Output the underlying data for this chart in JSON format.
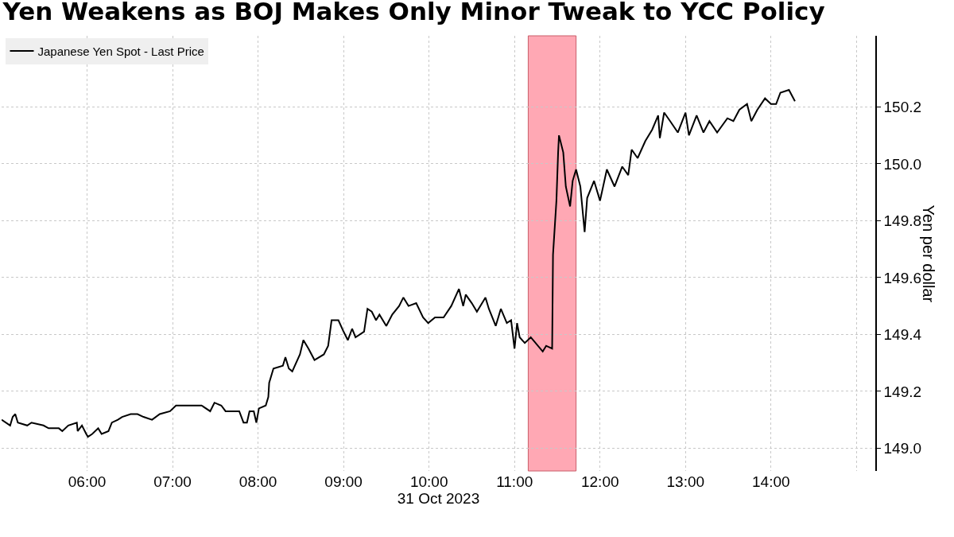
{
  "chart_data": {
    "type": "line",
    "title": "Yen Weakens as BOJ Makes Only Minor Tweak to YCC Policy",
    "xlabel": "31 Oct 2023",
    "ylabel": "Yen per dollar",
    "xlim": [
      5.0,
      15.22
    ],
    "xticks": [
      {
        "value": 6,
        "label": "06:00"
      },
      {
        "value": 7,
        "label": "07:00"
      },
      {
        "value": 8,
        "label": "08:00"
      },
      {
        "value": 9,
        "label": "09:00"
      },
      {
        "value": 10,
        "label": "10:00"
      },
      {
        "value": 11,
        "label": "11:00"
      },
      {
        "value": 12,
        "label": "12:00"
      },
      {
        "value": 13,
        "label": "13:00"
      },
      {
        "value": 14,
        "label": "14:00"
      },
      {
        "value": 15,
        "label": null
      }
    ],
    "ylim": [
      148.92,
      150.45
    ],
    "yticks": [
      {
        "value": 149,
        "label": "149.0"
      },
      {
        "value": 149.2,
        "label": "149.2"
      },
      {
        "value": 149.4,
        "label": "149.4"
      },
      {
        "value": 149.6,
        "label": "149.6"
      },
      {
        "value": 149.8,
        "label": "149.8"
      },
      {
        "value": 150,
        "label": "150.0"
      },
      {
        "value": 150.2,
        "label": "150.2"
      }
    ],
    "grid": true,
    "legend": "top left",
    "bands": [
      {
        "axis": "x",
        "from": 11.16,
        "to": 11.72,
        "color": "#ff9aa8"
      }
    ],
    "x": [
      5.0,
      5.1,
      5.13,
      5.16,
      5.19,
      5.3,
      5.35,
      5.49,
      5.55,
      5.67,
      5.71,
      5.78,
      5.88,
      5.89,
      5.94,
      5.99,
      6.01,
      6.06,
      6.13,
      6.17,
      6.25,
      6.29,
      6.36,
      6.41,
      6.51,
      6.59,
      6.66,
      6.76,
      6.85,
      6.97,
      7.04,
      7.34,
      7.44,
      7.49,
      7.57,
      7.62,
      7.78,
      7.83,
      7.87,
      7.9,
      7.95,
      7.98,
      8.01,
      8.09,
      8.12,
      8.13,
      8.18,
      8.29,
      8.32,
      8.36,
      8.4,
      8.49,
      8.53,
      8.59,
      8.66,
      8.77,
      8.82,
      8.86,
      8.94,
      9.0,
      9.05,
      9.1,
      9.14,
      9.24,
      9.28,
      9.33,
      9.38,
      9.42,
      9.5,
      9.57,
      9.65,
      9.7,
      9.76,
      9.85,
      9.93,
      9.99,
      10.07,
      10.17,
      10.26,
      10.35,
      10.4,
      10.43,
      10.5,
      10.56,
      10.66,
      10.7,
      10.78,
      10.84,
      10.91,
      10.96,
      11.0,
      11.03,
      11.06,
      11.12,
      11.19,
      11.33,
      11.37,
      11.44,
      11.45,
      11.49,
      11.51,
      11.52,
      11.57,
      11.6,
      11.65,
      11.68,
      11.72,
      11.77,
      11.82,
      11.85,
      11.93,
      12.0,
      12.08,
      12.17,
      12.26,
      12.33,
      12.37,
      12.44,
      12.53,
      12.61,
      12.68,
      12.7,
      12.75,
      12.82,
      12.91,
      13.0,
      13.04,
      13.13,
      13.21,
      13.28,
      13.37,
      13.49,
      13.56,
      13.63,
      13.72,
      13.77,
      13.84,
      13.93,
      14.0,
      14.06,
      14.11,
      14.21,
      14.28
    ],
    "series": [
      {
        "name": "Japanese Yen Spot - Last Price",
        "color": "#000000",
        "values": [
          149.1,
          149.08,
          149.11,
          149.12,
          149.09,
          149.08,
          149.09,
          149.08,
          149.07,
          149.07,
          149.06,
          149.08,
          149.09,
          149.06,
          149.08,
          149.05,
          149.04,
          149.05,
          149.07,
          149.05,
          149.06,
          149.09,
          149.1,
          149.11,
          149.12,
          149.12,
          149.11,
          149.1,
          149.12,
          149.13,
          149.15,
          149.15,
          149.13,
          149.16,
          149.15,
          149.13,
          149.13,
          149.09,
          149.09,
          149.13,
          149.13,
          149.09,
          149.14,
          149.15,
          149.18,
          149.23,
          149.28,
          149.29,
          149.32,
          149.28,
          149.27,
          149.33,
          149.38,
          149.35,
          149.31,
          149.33,
          149.36,
          149.45,
          149.45,
          149.41,
          149.38,
          149.42,
          149.39,
          149.41,
          149.49,
          149.48,
          149.45,
          149.47,
          149.43,
          149.47,
          149.5,
          149.53,
          149.5,
          149.51,
          149.46,
          149.44,
          149.46,
          149.46,
          149.5,
          149.56,
          149.5,
          149.54,
          149.51,
          149.48,
          149.53,
          149.49,
          149.43,
          149.49,
          149.44,
          149.45,
          149.35,
          149.44,
          149.39,
          149.37,
          149.39,
          149.34,
          149.36,
          149.35,
          149.68,
          149.87,
          150.04,
          150.1,
          150.04,
          149.92,
          149.85,
          149.94,
          149.98,
          149.92,
          149.76,
          149.88,
          149.94,
          149.87,
          149.98,
          149.92,
          149.99,
          149.96,
          150.05,
          150.02,
          150.08,
          150.12,
          150.17,
          150.09,
          150.18,
          150.15,
          150.11,
          150.18,
          150.1,
          150.17,
          150.11,
          150.15,
          150.11,
          150.16,
          150.15,
          150.19,
          150.21,
          150.15,
          150.19,
          150.23,
          150.21,
          150.21,
          150.25,
          150.26,
          150.22
        ]
      }
    ]
  }
}
